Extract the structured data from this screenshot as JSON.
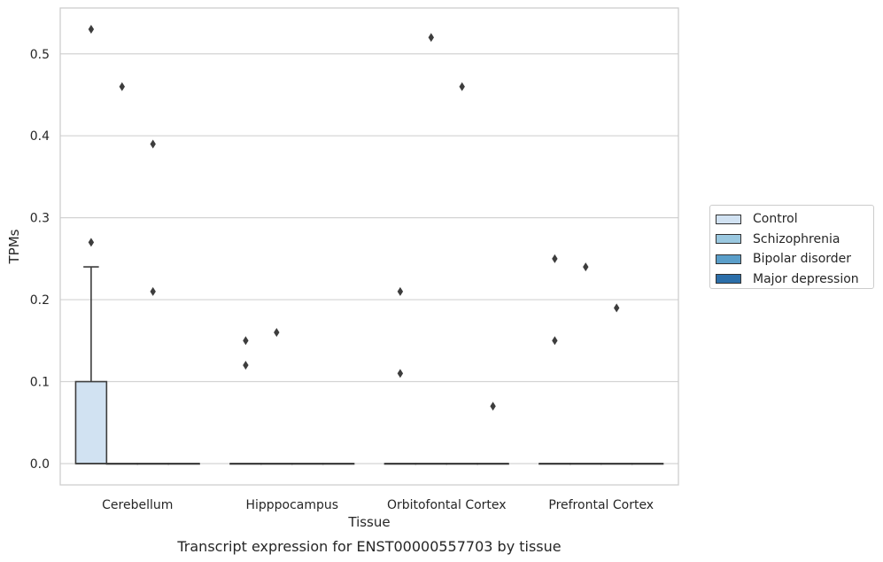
{
  "chart_data": {
    "type": "box",
    "title": "Transcript expression for ENST00000557703 by tissue",
    "xlabel": "Tissue",
    "ylabel": "TPMs",
    "categories": [
      "Cerebellum",
      "Hipppocampus",
      "Orbitofontal Cortex",
      "Prefrontal Cortex"
    ],
    "ylim": [
      -0.026,
      0.556
    ],
    "yticks": [
      0.0,
      0.1,
      0.2,
      0.3,
      0.4,
      0.5
    ],
    "ytick_labels": [
      "0.0",
      "0.1",
      "0.2",
      "0.3",
      "0.4",
      "0.5"
    ],
    "grid": "horizontal",
    "legend_position": "right",
    "series": [
      {
        "name": "Control",
        "color": "#d1e2f2",
        "boxes": [
          {
            "q1": 0.0,
            "median": 0.0,
            "q3": 0.1,
            "whisker_low": 0.0,
            "whisker_high": 0.24,
            "outliers": [
              0.53,
              0.27
            ]
          },
          {
            "q1": 0.0,
            "median": 0.0,
            "q3": 0.0,
            "whisker_low": 0.0,
            "whisker_high": 0.0,
            "outliers": [
              0.15,
              0.12
            ]
          },
          {
            "q1": 0.0,
            "median": 0.0,
            "q3": 0.0,
            "whisker_low": 0.0,
            "whisker_high": 0.0,
            "outliers": [
              0.21,
              0.11
            ]
          },
          {
            "q1": 0.0,
            "median": 0.0,
            "q3": 0.0,
            "whisker_low": 0.0,
            "whisker_high": 0.0,
            "outliers": [
              0.25,
              0.15
            ]
          }
        ]
      },
      {
        "name": "Schizophrenia",
        "color": "#9ac8e0",
        "boxes": [
          {
            "q1": 0.0,
            "median": 0.0,
            "q3": 0.0,
            "whisker_low": 0.0,
            "whisker_high": 0.0,
            "outliers": [
              0.46
            ]
          },
          {
            "q1": 0.0,
            "median": 0.0,
            "q3": 0.0,
            "whisker_low": 0.0,
            "whisker_high": 0.0,
            "outliers": [
              0.16
            ]
          },
          {
            "q1": 0.0,
            "median": 0.0,
            "q3": 0.0,
            "whisker_low": 0.0,
            "whisker_high": 0.0,
            "outliers": [
              0.52
            ]
          },
          {
            "q1": 0.0,
            "median": 0.0,
            "q3": 0.0,
            "whisker_low": 0.0,
            "whisker_high": 0.0,
            "outliers": [
              0.24
            ]
          }
        ]
      },
      {
        "name": "Bipolar disorder",
        "color": "#5a9ec9",
        "boxes": [
          {
            "q1": 0.0,
            "median": 0.0,
            "q3": 0.0,
            "whisker_low": 0.0,
            "whisker_high": 0.0,
            "outliers": [
              0.39,
              0.21
            ]
          },
          {
            "q1": 0.0,
            "median": 0.0,
            "q3": 0.0,
            "whisker_low": 0.0,
            "whisker_high": 0.0,
            "outliers": []
          },
          {
            "q1": 0.0,
            "median": 0.0,
            "q3": 0.0,
            "whisker_low": 0.0,
            "whisker_high": 0.0,
            "outliers": [
              0.46
            ]
          },
          {
            "q1": 0.0,
            "median": 0.0,
            "q3": 0.0,
            "whisker_low": 0.0,
            "whisker_high": 0.0,
            "outliers": [
              0.19
            ]
          }
        ]
      },
      {
        "name": "Major depression",
        "color": "#2b6ea9",
        "boxes": [
          {
            "q1": 0.0,
            "median": 0.0,
            "q3": 0.0,
            "whisker_low": 0.0,
            "whisker_high": 0.0,
            "outliers": []
          },
          {
            "q1": 0.0,
            "median": 0.0,
            "q3": 0.0,
            "whisker_low": 0.0,
            "whisker_high": 0.0,
            "outliers": []
          },
          {
            "q1": 0.0,
            "median": 0.0,
            "q3": 0.0,
            "whisker_low": 0.0,
            "whisker_high": 0.0,
            "outliers": [
              0.07
            ]
          },
          {
            "q1": 0.0,
            "median": 0.0,
            "q3": 0.0,
            "whisker_low": 0.0,
            "whisker_high": 0.0,
            "outliers": []
          }
        ]
      }
    ]
  }
}
